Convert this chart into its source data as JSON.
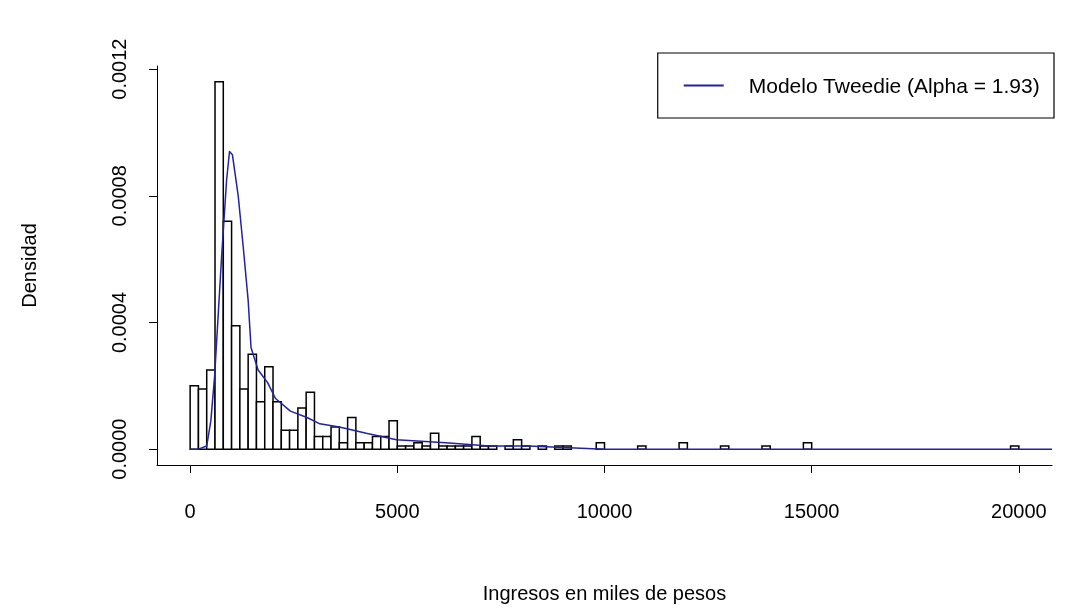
{
  "chart_data": {
    "type": "histogram",
    "xlabel": "Ingresos en miles de pesos",
    "ylabel": "Densidad",
    "bins": [
      0,
      200,
      400,
      600,
      800,
      1000,
      1200,
      1400,
      1600,
      1800,
      2000,
      2200,
      2400,
      2600,
      2800,
      3000,
      3200,
      3400,
      3600,
      3800,
      4000,
      4200,
      4400,
      4600,
      4800,
      5000,
      5200,
      5400,
      5600,
      5800,
      6000,
      6200,
      6400,
      6600,
      6800,
      7000,
      7200,
      7400,
      7600,
      7800,
      8000,
      8200,
      8400,
      8600,
      8800,
      9000,
      9200,
      9400,
      9600,
      9800,
      10000,
      10200,
      10400,
      10600,
      10800,
      11000,
      11200,
      11400,
      11600,
      11800,
      12000,
      12200,
      12400,
      12600,
      12800,
      13000,
      13200,
      13400,
      13600,
      13800,
      14000,
      14200,
      14400,
      14600,
      14800,
      15000,
      15200,
      15400,
      15600,
      15800,
      16000,
      16200,
      16400,
      16600,
      16800,
      17000,
      17200,
      17400,
      17600,
      17800,
      18000,
      18200,
      18400,
      18600,
      18800,
      19000,
      19200,
      19400,
      19600,
      19800,
      20000
    ],
    "values": [
      0.0002,
      0.00019,
      0.00025,
      0.00116,
      0.00072,
      0.00039,
      0.00019,
      0.0003,
      0.00015,
      0.00026,
      0.00015,
      6e-05,
      6e-05,
      0.00013,
      0.00018,
      4e-05,
      4e-05,
      7e-05,
      2e-05,
      0.0001,
      2e-05,
      2e-05,
      4e-05,
      4e-05,
      9e-05,
      1e-05,
      1e-05,
      2e-05,
      1e-05,
      5e-05,
      1e-05,
      1e-05,
      1e-05,
      1e-05,
      4e-05,
      1e-05,
      1e-05,
      0,
      1e-05,
      3e-05,
      1e-05,
      0,
      1e-05,
      0,
      1e-05,
      1e-05,
      0,
      0,
      0,
      2e-05,
      0,
      0,
      0,
      0,
      1e-05,
      0,
      0,
      0,
      0,
      2e-05,
      0,
      0,
      0,
      0,
      1e-05,
      0,
      0,
      0,
      0,
      1e-05,
      0,
      0,
      0,
      0,
      2e-05,
      0,
      0,
      0,
      0,
      0,
      0,
      0,
      0,
      0,
      0,
      0,
      0,
      0,
      0,
      0,
      0,
      0,
      0,
      0,
      0,
      0,
      0,
      0,
      0,
      1e-05
    ],
    "color": "#ffffff",
    "series": [
      {
        "name": "Modelo Tweedie (Alpha = 1.93)",
        "type": "line",
        "color": "#2323a0",
        "x": [
          0,
          200,
          400,
          500,
          590,
          760,
          880,
          950,
          1020,
          1160,
          1280,
          1400,
          1470,
          1640,
          1870,
          2060,
          2420,
          2820,
          3130,
          3600,
          4250,
          4980,
          6170,
          7210,
          8160,
          10000,
          12000,
          16000,
          20800
        ],
        "values": [
          0,
          0,
          1e-05,
          9e-05,
          0.00023,
          0.00061,
          0.00085,
          0.00094,
          0.00093,
          0.0008,
          0.00064,
          0.00047,
          0.00032,
          0.00025,
          0.00021,
          0.00016,
          0.00012,
          0.0001,
          8e-05,
          7e-05,
          5e-05,
          3e-05,
          2e-05,
          1e-05,
          1e-05,
          0,
          0,
          0,
          0
        ]
      }
    ],
    "xlim": [
      -800,
      20800
    ],
    "xticks": [
      0,
      5000,
      10000,
      15000,
      20000
    ],
    "ylim": [
      -5e-05,
      0.00121
    ],
    "yticks": [
      {
        "value": 0,
        "label": "0.0000"
      },
      {
        "value": 0.0004,
        "label": "0.0004"
      },
      {
        "value": 0.0008,
        "label": "0.0008"
      },
      {
        "value": 0.0012,
        "label": "0.0012"
      }
    ],
    "grid": false,
    "legend": "top right",
    "marker": "none",
    "line_style": "solid"
  }
}
